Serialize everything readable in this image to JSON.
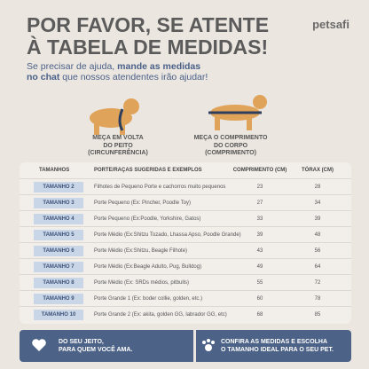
{
  "brand": "petsafi",
  "header": {
    "title_lines": [
      "POR FAVOR, SE ATENTE",
      "À TABELA DE MEDIDAS!"
    ],
    "subtitle": [
      "Se precisar de ajuda, ",
      "mande as medidas no chat",
      " que nossos atendentes irão ajudar!"
    ]
  },
  "captions": [
    [
      "MEÇA EM VOLTA",
      "DO PEITO",
      "(CIRCUNFERÊNCIA)"
    ],
    [
      "MEÇA O COMPRIMENTO",
      "DO CORPO",
      "(COMPRIMENTO)"
    ]
  ],
  "table": {
    "headers": [
      "TAMANHOS",
      "PORTE/RAÇAS SUGERIDAS E EXEMPLOS",
      "COMPRIMENTO (CM)",
      "TÓRAX (CM)"
    ],
    "rows": [
      [
        "TAMANHO 2",
        "Filhotes de Pequeno Porte e cachorros muito pequenos",
        23,
        28
      ],
      [
        "TAMANHO 3",
        "Porte Pequeno (Ex: Pincher, Poodle Toy)",
        27,
        34
      ],
      [
        "TAMANHO 4",
        "Porte Pequeno (Ex:Poodle, Yorkshire, Gatos)",
        33,
        39
      ],
      [
        "TAMANHO 5",
        "Porte Médio (Ex:Shitzu Tozado, Lhassa Apso, Poodle Grande)",
        39,
        48
      ],
      [
        "TAMANHO 6",
        "Porte Médio (Ex:Shitzu, Beagle Filhote)",
        43,
        56
      ],
      [
        "TAMANHO 7",
        "Porte Médio (Ex:Beagle Adulto, Pug, Bulldog)",
        49,
        64
      ],
      [
        "TAMANHO 8",
        "Porte Médio (Ex: SRDs médios, pitbulls)",
        55,
        72
      ],
      [
        "TAMANHO 9",
        "Porte Grande 1 (Ex: boder collie, golden, etc.)",
        60,
        78
      ],
      [
        "TAMANHO 10",
        "Porte Grande 2 (Ex: akita, golden GG, labrador GG, etc)",
        68,
        85
      ]
    ]
  },
  "footer": [
    [
      "DO SEU JEITO,",
      "PARA QUEM VOCÊ AMA."
    ],
    [
      "CONFIRA AS MEDIDAS E ESCOLHA",
      "O TAMANHO IDEAL PARA O SEU PET."
    ]
  ]
}
